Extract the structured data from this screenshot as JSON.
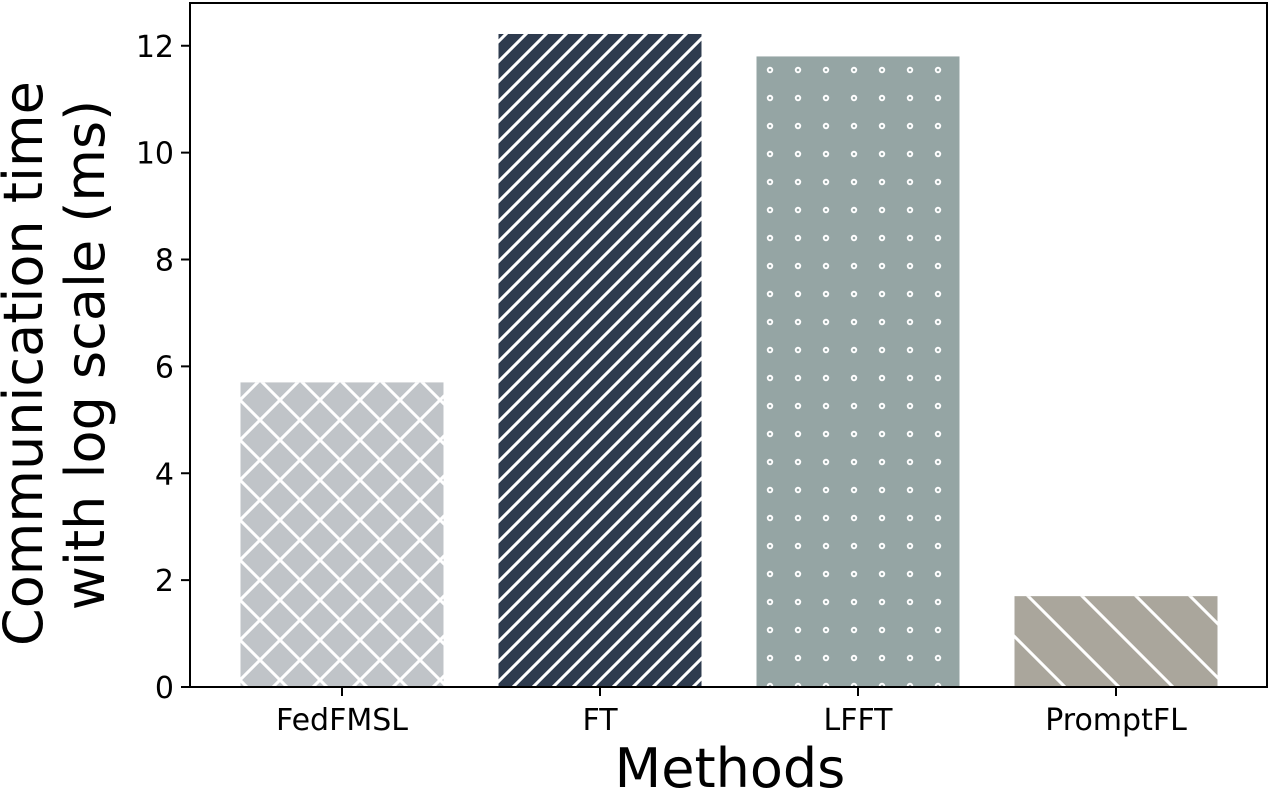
{
  "chart_data": {
    "type": "bar",
    "categories": [
      "FedFMSL",
      "FT",
      "LFFT",
      "PromptFL"
    ],
    "values": [
      5.7,
      12.22,
      11.8,
      1.7
    ],
    "xlabel": "Methods",
    "ylabel_lines": [
      "Communication time",
      "with log scale (ms)"
    ],
    "ylim": [
      0,
      12.8
    ],
    "yticks": [
      0,
      2,
      4,
      6,
      8,
      10,
      12
    ],
    "grid": false,
    "legend": "none",
    "bar_colors": [
      "#c0c4c8",
      "#2e3b4e",
      "#95a5a4",
      "#aaa69c"
    ],
    "bar_patterns": [
      "crosshatch",
      "diagonal-dense",
      "dots",
      "diagonal-sparse"
    ]
  }
}
